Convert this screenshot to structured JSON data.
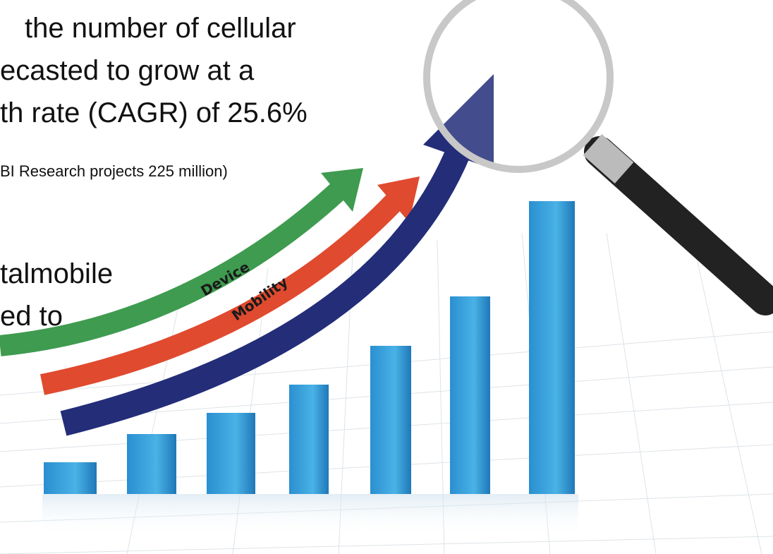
{
  "text": {
    "lines": [
      "the number of cellular",
      "ecasted to grow at a",
      "th rate (CAGR) of 25.6%"
    ],
    "note": "BI Research projects 225 million)",
    "lines2": [
      "talmobile",
      "ed to"
    ]
  },
  "illustration": {
    "arrow_labels": [
      "Device",
      "Mobility"
    ]
  }
}
